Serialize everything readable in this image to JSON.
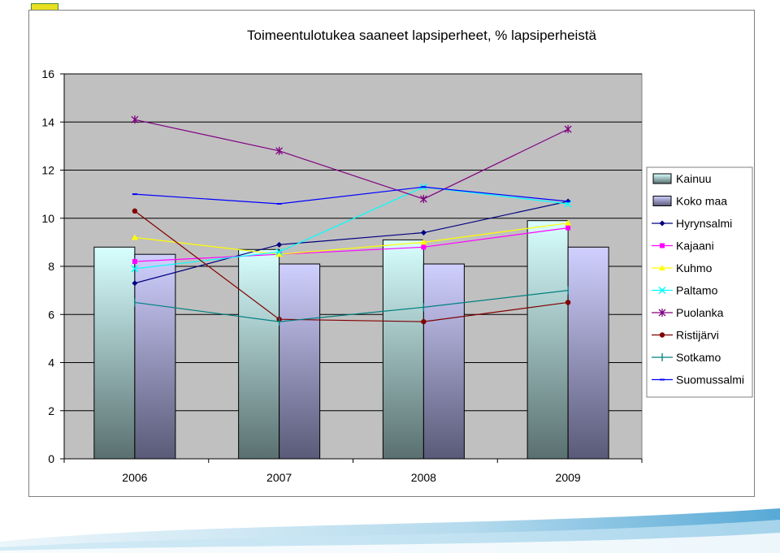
{
  "chart_data": {
    "type": "bar",
    "title": "Toimeentulotukea saaneet lapsiperheet, % lapsiperheistä",
    "categories": [
      "2006",
      "2007",
      "2008",
      "2009"
    ],
    "ylim": [
      0,
      16
    ],
    "yticks": [
      0,
      2,
      4,
      6,
      8,
      10,
      12,
      14,
      16
    ],
    "grid": true,
    "legend": "right",
    "bar_series": [
      {
        "name": "Kainuu",
        "values": [
          8.8,
          8.7,
          9.1,
          9.9
        ],
        "color": "#c8ffff"
      },
      {
        "name": "Koko maa",
        "values": [
          8.5,
          8.1,
          8.1,
          8.8
        ],
        "color": "#c8c8ff"
      }
    ],
    "line_series": [
      {
        "name": "Hyrynsalmi",
        "values": [
          7.3,
          8.9,
          9.4,
          10.7
        ],
        "color": "#000080",
        "marker": "diamond"
      },
      {
        "name": "Kajaani",
        "values": [
          8.2,
          8.5,
          8.8,
          9.6
        ],
        "color": "#ff00ff",
        "marker": "square"
      },
      {
        "name": "Kuhmo",
        "values": [
          9.2,
          8.5,
          9.0,
          9.8
        ],
        "color": "#ffff00",
        "marker": "triangle"
      },
      {
        "name": "Paltamo",
        "values": [
          7.9,
          8.6,
          11.3,
          10.6
        ],
        "color": "#00ffff",
        "marker": "x"
      },
      {
        "name": "Puolanka",
        "values": [
          14.1,
          12.8,
          10.8,
          13.7
        ],
        "color": "#800080",
        "marker": "star"
      },
      {
        "name": "Ristijärvi",
        "values": [
          10.3,
          5.8,
          5.7,
          6.5
        ],
        "color": "#800000",
        "marker": "circle"
      },
      {
        "name": "Sotkamo",
        "values": [
          6.5,
          5.7,
          6.3,
          7.0
        ],
        "color": "#008080",
        "marker": "plus"
      },
      {
        "name": "Suomussalmi",
        "values": [
          11.0,
          10.6,
          11.3,
          10.7
        ],
        "color": "#0000ff",
        "marker": "dash"
      }
    ]
  }
}
